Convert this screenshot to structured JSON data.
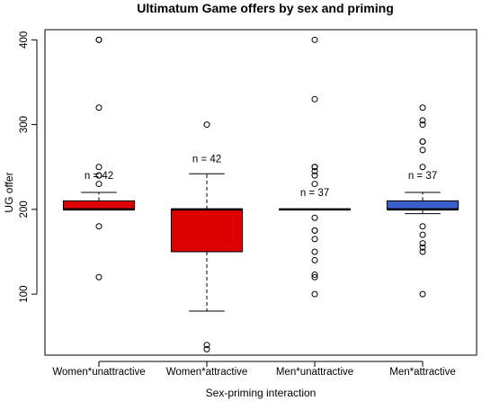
{
  "chart_data": {
    "type": "boxplot",
    "title": "Ultimatum Game offers by sex and priming",
    "xlabel": "Sex-priming interaction",
    "ylabel": "UG offer",
    "ylim": [
      28,
      412
    ],
    "yticks": [
      100,
      200,
      300,
      400
    ],
    "categories": [
      "Women*unattractive",
      "Women*attractive",
      "Men*unattractive",
      "Men*attractive"
    ],
    "grid": false,
    "boxes": [
      {
        "category": "Women*unattractive",
        "color": "#dd0000",
        "whisker_low": 200,
        "q1": 200,
        "median": 200,
        "q3": 210,
        "whisker_high": 220,
        "outliers": [
          400,
          400,
          320,
          250,
          240,
          240,
          230,
          180,
          120
        ],
        "n_label": "n = 42",
        "n_label_y": 240
      },
      {
        "category": "Women*attractive",
        "color": "#dd0000",
        "whisker_low": 80,
        "q1": 150,
        "median": 200,
        "q3": 200,
        "whisker_high": 242,
        "outliers": [
          300,
          40,
          35
        ],
        "n_label": "n = 42",
        "n_label_y": 260
      },
      {
        "category": "Men*unattractive",
        "color": "#dd0000",
        "whisker_low": 200,
        "q1": 200,
        "median": 200,
        "q3": 200,
        "whisker_high": 200,
        "outliers": [
          400,
          330,
          250,
          250,
          245,
          240,
          230,
          190,
          175,
          175,
          165,
          150,
          140,
          123,
          120,
          100
        ],
        "n_label": "n = 37",
        "n_label_y": 220
      },
      {
        "category": "Men*attractive",
        "color": "#3a5fcd",
        "whisker_low": 195,
        "q1": 200,
        "median": 200,
        "q3": 210,
        "whisker_high": 220,
        "outliers": [
          320,
          305,
          300,
          280,
          280,
          270,
          250,
          180,
          170,
          160,
          155,
          150,
          100
        ],
        "n_label": "n = 37",
        "n_label_y": 240
      }
    ]
  }
}
